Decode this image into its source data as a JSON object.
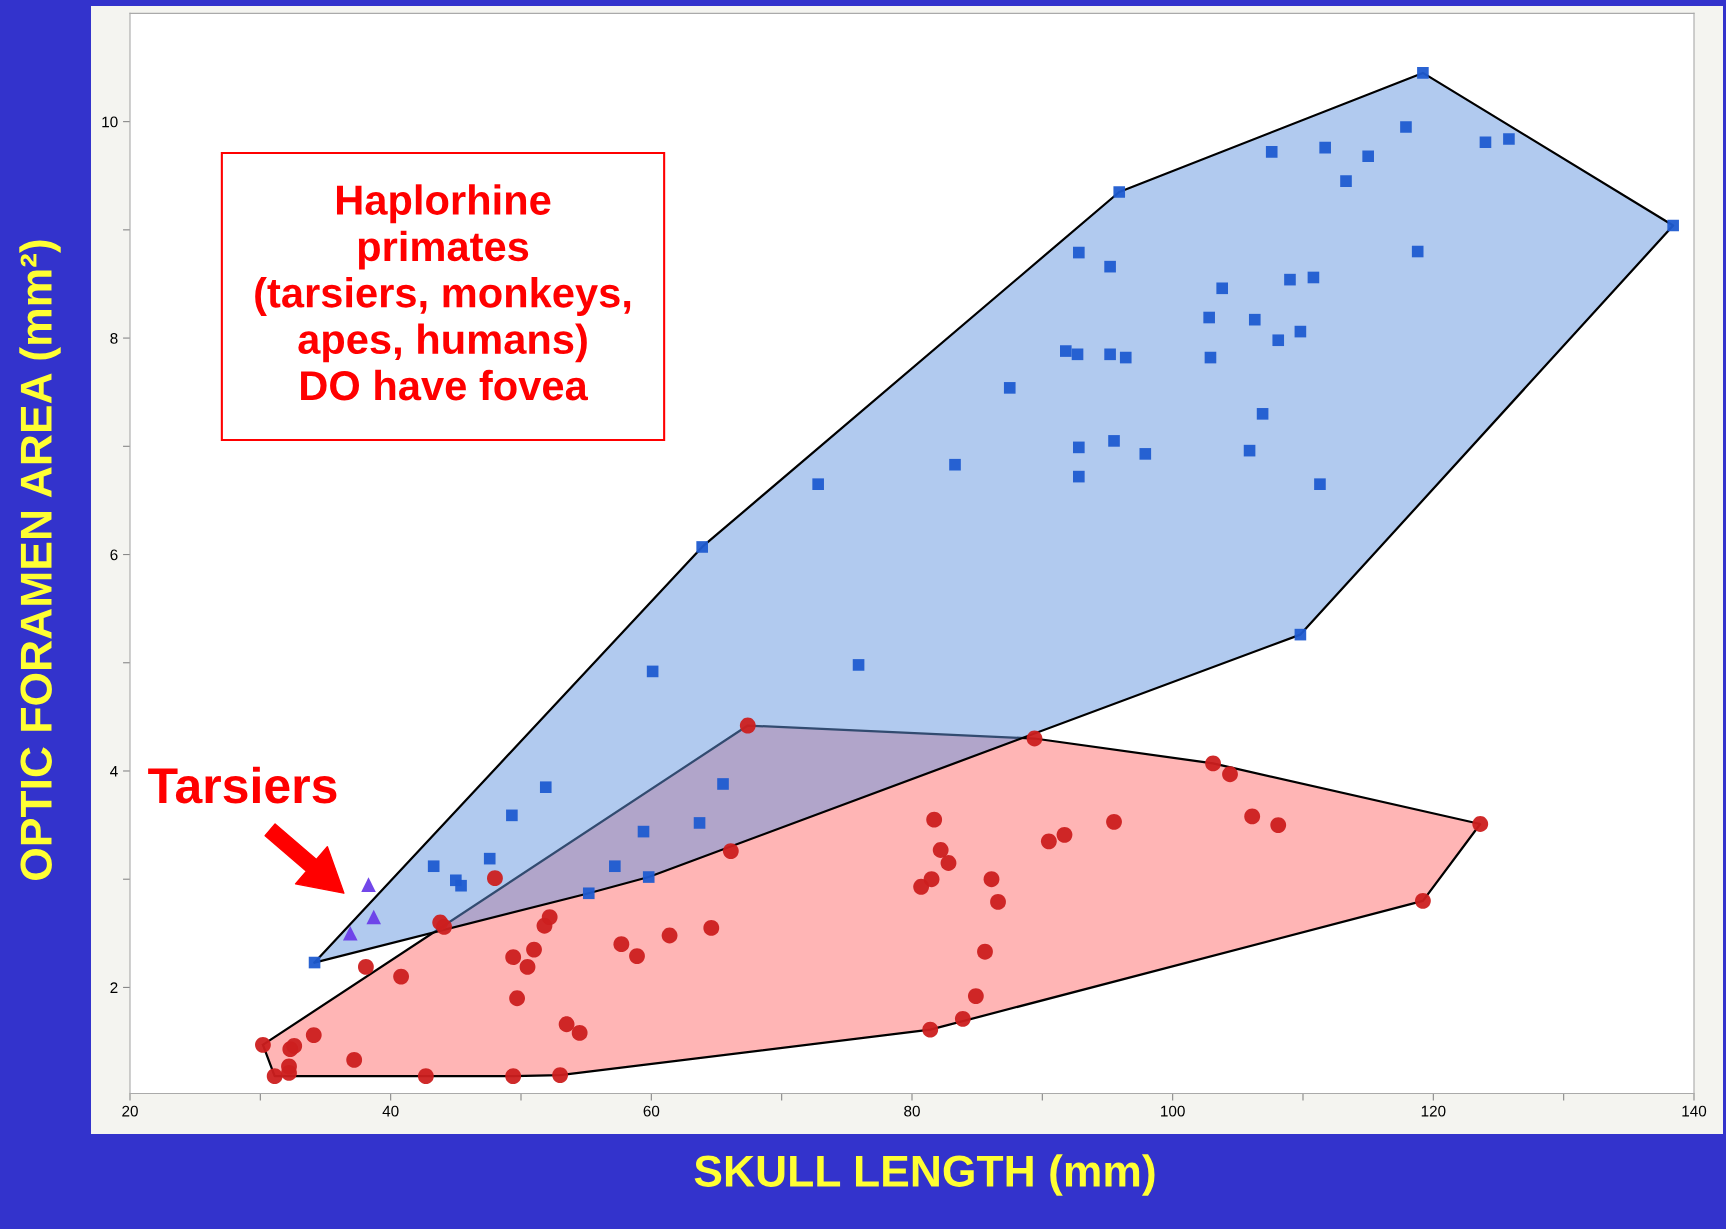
{
  "chart_data": {
    "type": "scatter",
    "xlabel": "SKULL LENGTH (mm)",
    "ylabel": "OPTIC FORAMEN AREA (mm²)",
    "xlim": [
      20,
      140
    ],
    "xticks": [
      20,
      {
        "value": 30,
        "label": null
      },
      40,
      {
        "value": 50,
        "label": null
      },
      60,
      {
        "value": 70,
        "label": null
      },
      80,
      {
        "value": 90,
        "label": null
      },
      100,
      {
        "value": 110,
        "label": null
      },
      120,
      {
        "value": 130,
        "label": null
      },
      140
    ],
    "ylim": [
      1.02,
      11.0
    ],
    "yticks": [
      2,
      {
        "value": 3,
        "label": null
      },
      4,
      {
        "value": 5,
        "label": null
      },
      6,
      {
        "value": 7,
        "label": null
      },
      8,
      {
        "value": 9,
        "label": null
      },
      10
    ],
    "grid": false,
    "legend": false,
    "annotations": [
      "Haplorhine\nprimates\n(tarsiers, monkeys,\napes, humans)\nDO have fovea",
      "Tarsiers"
    ],
    "series": [
      {
        "type": "area",
        "color": "#ff6b6b",
        "marker": "none",
        "x": [
          30.2,
          31.1,
          49.4,
          53.0,
          81.4,
          119.2,
          123.6,
          103.1,
          89.4,
          67.4
        ],
        "values": [
          1.47,
          1.18,
          1.18,
          1.19,
          1.61,
          2.8,
          3.51,
          4.07,
          4.3,
          4.42
        ]
      },
      {
        "type": "area",
        "color": "#6495e0",
        "marker": "none",
        "x": [
          34.16,
          55.2,
          59.8,
          109.8,
          138.4,
          119.2,
          95.9,
          63.9
        ],
        "values": [
          2.23,
          2.87,
          3.02,
          5.26,
          9.04,
          10.45,
          9.35,
          6.07
        ]
      },
      {
        "type": "scatter",
        "color": "#cc1f1f",
        "marker": "circle",
        "x": [
          30.2,
          31.1,
          32.2,
          32.2,
          32.3,
          32.6,
          34.1,
          37.2,
          38.1,
          40.8,
          42.7,
          43.8,
          44.1,
          48.0,
          49.4,
          49.4,
          49.7,
          50.5,
          51.0,
          51.8,
          52.2,
          53.0,
          53.5,
          54.5,
          57.7,
          58.9,
          61.4,
          64.6,
          66.1,
          67.4,
          89.4,
          81.7,
          82.2,
          82.8,
          81.5,
          80.7,
          86.1,
          86.6,
          85.6,
          84.9,
          83.9,
          81.4,
          90.5,
          91.7,
          95.5,
          103.1,
          104.4,
          106.1,
          108.1,
          119.2,
          123.6
        ],
        "values": [
          1.47,
          1.18,
          1.21,
          1.27,
          1.43,
          1.46,
          1.56,
          1.33,
          2.19,
          2.1,
          1.18,
          2.6,
          2.56,
          3.01,
          2.28,
          1.18,
          1.9,
          2.19,
          2.35,
          2.57,
          2.65,
          1.19,
          1.66,
          1.58,
          2.4,
          2.29,
          2.48,
          2.55,
          3.26,
          4.42,
          4.3,
          3.55,
          3.27,
          3.15,
          3.0,
          2.93,
          3.0,
          2.79,
          2.33,
          1.92,
          1.71,
          1.61,
          3.35,
          3.41,
          3.53,
          4.07,
          3.97,
          3.58,
          3.5,
          2.8,
          3.51
        ]
      },
      {
        "type": "scatter",
        "color": "#1f5bd0",
        "marker": "square",
        "x": [
          34.16,
          43.3,
          45.0,
          45.4,
          47.6,
          49.3,
          51.9,
          55.2,
          57.2,
          59.8,
          59.4,
          63.7,
          65.5,
          60.1,
          75.9,
          63.9,
          72.8,
          83.3,
          87.5,
          91.8,
          92.7,
          95.2,
          96.4,
          102.9,
          92.8,
          95.2,
          92.8,
          95.5,
          97.9,
          92.8,
          105.9,
          106.9,
          102.8,
          106.3,
          108.1,
          109.8,
          103.8,
          109.0,
          110.8,
          111.3,
          109.8,
          95.9,
          118.8,
          107.6,
          111.7,
          113.3,
          115.0,
          117.9,
          119.2,
          124.0,
          125.8,
          138.4
        ],
        "values": [
          2.23,
          3.12,
          2.99,
          2.94,
          3.19,
          3.59,
          3.85,
          2.87,
          3.12,
          3.02,
          3.44,
          3.52,
          3.88,
          4.92,
          4.98,
          6.07,
          6.65,
          6.83,
          7.54,
          7.88,
          7.85,
          7.85,
          7.82,
          7.82,
          8.79,
          8.66,
          6.99,
          7.05,
          6.93,
          6.72,
          6.96,
          7.3,
          8.19,
          8.17,
          7.98,
          8.06,
          8.46,
          8.54,
          8.56,
          6.65,
          5.26,
          9.35,
          8.8,
          9.72,
          9.76,
          9.45,
          9.68,
          9.95,
          10.45,
          9.81,
          9.84,
          9.04
        ]
      },
      {
        "type": "scatter",
        "color": "#6a3de8",
        "marker": "triangle",
        "x": [
          36.9,
          38.3,
          38.7
        ],
        "values": [
          2.5,
          2.95,
          2.65
        ]
      }
    ]
  }
}
